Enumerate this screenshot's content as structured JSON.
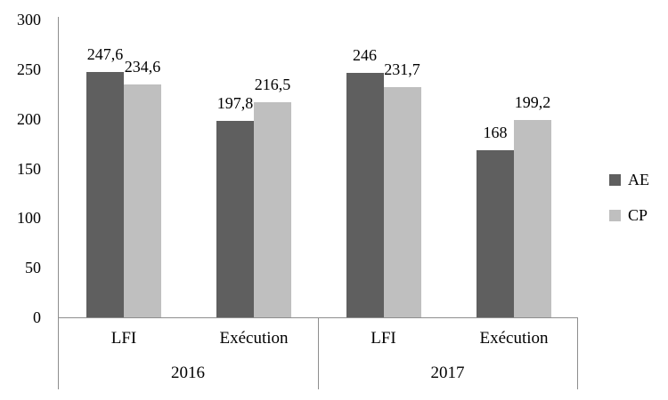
{
  "chart_data": {
    "type": "bar",
    "title": "",
    "grid": false,
    "legend_position": "right",
    "y_axis": {
      "min": 0,
      "max": 300,
      "step": 50,
      "tick_labels": [
        "0",
        "50",
        "100",
        "150",
        "200",
        "250",
        "300"
      ]
    },
    "x_axis": {
      "group_labels": [
        "2016",
        "2017"
      ],
      "slots": [
        {
          "group": "2016",
          "category": "LFI"
        },
        {
          "group": "2016",
          "category": "Exécution"
        },
        {
          "group": "2017",
          "category": "LFI"
        },
        {
          "group": "2017",
          "category": "Exécution"
        }
      ]
    },
    "series": [
      {
        "name": "AE",
        "color": "#5f5f5f",
        "values": [
          247.6,
          197.8,
          246,
          168
        ],
        "value_labels": [
          "247,6",
          "197,8",
          "246",
          "168"
        ]
      },
      {
        "name": "CP",
        "color": "#bfbfbf",
        "values": [
          234.6,
          216.5,
          231.7,
          199.2
        ],
        "value_labels": [
          "234,6",
          "216,5",
          "231,7",
          "199,2"
        ]
      }
    ],
    "colors": {
      "axis_line": "#8e8e8e",
      "text": "#000000",
      "background": "#ffffff"
    }
  }
}
